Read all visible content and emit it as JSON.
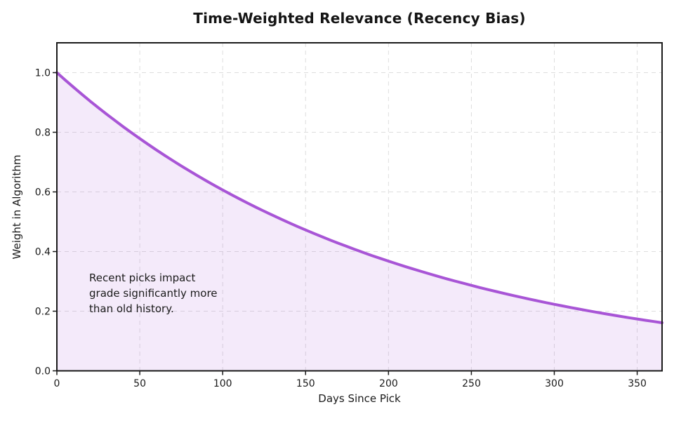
{
  "chart_data": {
    "type": "area",
    "title": "Time-Weighted Relevance (Recency Bias)",
    "xlabel": "Days Since Pick",
    "ylabel": "Weight in Algorithm",
    "xlim": [
      0,
      365
    ],
    "ylim": [
      0,
      1.1
    ],
    "xticks": [
      0,
      50,
      100,
      150,
      200,
      250,
      300,
      350
    ],
    "yticks": [
      0.0,
      0.2,
      0.4,
      0.6,
      0.8,
      1.0
    ],
    "xtick_labels": [
      "0",
      "50",
      "100",
      "150",
      "200",
      "250",
      "300",
      "350"
    ],
    "ytick_labels": [
      "0.0",
      "0.2",
      "0.4",
      "0.6",
      "0.8",
      "1.0"
    ],
    "grid": "dashed",
    "legend": "none",
    "line_color": "#a855d6",
    "fill_color": "rgba(168,85,214,0.12)",
    "grid_color": "#dedede",
    "spine_color": "#1a1a1a",
    "formula": "weight = exp(-days/200)",
    "decay_constant_days": 200,
    "annotation": {
      "text": "Recent picks impact\ngrade significantly more\nthan old history.",
      "x_days": 20,
      "y_weight": 0.31
    },
    "x": [
      0,
      5,
      10,
      15,
      20,
      25,
      30,
      35,
      40,
      45,
      50,
      55,
      60,
      65,
      70,
      75,
      80,
      85,
      90,
      95,
      100,
      105,
      110,
      115,
      120,
      125,
      130,
      135,
      140,
      145,
      150,
      155,
      160,
      165,
      170,
      175,
      180,
      185,
      190,
      195,
      200,
      205,
      210,
      215,
      220,
      225,
      230,
      235,
      240,
      245,
      250,
      255,
      260,
      265,
      270,
      275,
      280,
      285,
      290,
      295,
      300,
      305,
      310,
      315,
      320,
      325,
      330,
      335,
      340,
      345,
      350,
      355,
      360,
      365
    ],
    "y": [
      1.0,
      0.9753,
      0.9512,
      0.9277,
      0.9048,
      0.8825,
      0.8607,
      0.8395,
      0.8187,
      0.7985,
      0.7788,
      0.7596,
      0.7408,
      0.7225,
      0.7047,
      0.6873,
      0.6703,
      0.6538,
      0.6376,
      0.6219,
      0.6065,
      0.5916,
      0.5769,
      0.5627,
      0.5488,
      0.5353,
      0.522,
      0.5092,
      0.4966,
      0.4843,
      0.4724,
      0.4607,
      0.4493,
      0.4382,
      0.4274,
      0.4169,
      0.4066,
      0.3965,
      0.3867,
      0.3772,
      0.3679,
      0.3588,
      0.3499,
      0.3413,
      0.3329,
      0.3247,
      0.3166,
      0.3088,
      0.3012,
      0.2938,
      0.2865,
      0.2794,
      0.2725,
      0.2658,
      0.2592,
      0.2528,
      0.2466,
      0.2405,
      0.2346,
      0.2288,
      0.2231,
      0.2176,
      0.2123,
      0.207,
      0.2019,
      0.1969,
      0.1921,
      0.1873,
      0.1827,
      0.1782,
      0.1738,
      0.1695,
      0.1653,
      0.1612
    ]
  }
}
